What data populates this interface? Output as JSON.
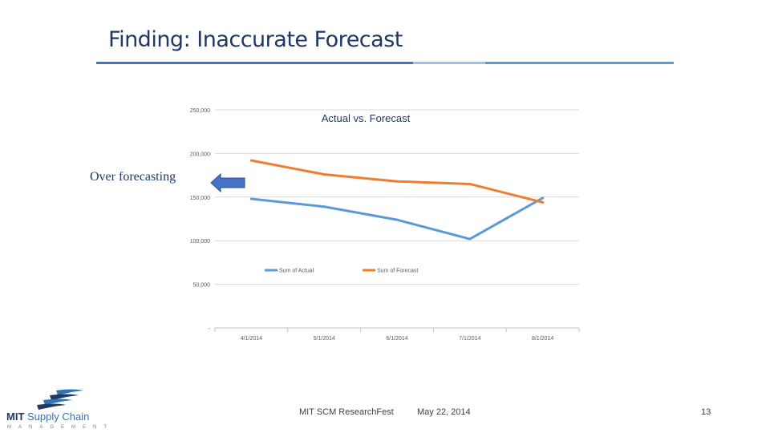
{
  "slide": {
    "title": "Finding: Inaccurate Forecast",
    "annotation": "Over forecasting",
    "page_number": "13"
  },
  "footer": {
    "event": "MIT SCM ResearchFest",
    "date": "May 22, 2014"
  },
  "logo": {
    "name_bold": "MIT",
    "name_rest": " Supply Chain",
    "subtitle": "MANAGEMENT"
  },
  "colors": {
    "title": "#1f3864",
    "actual": "#5b9bd5",
    "forecast": "#ed7d31",
    "arrow": "#4472c4",
    "rule_dark": "#4472c4",
    "rule_light": "#9dc3e6"
  },
  "chart_data": {
    "type": "line",
    "title": "Actual vs. Forecast",
    "categories": [
      "4/1/2014",
      "5/1/2014",
      "6/1/2014",
      "7/1/2014",
      "8/1/2014"
    ],
    "y_ticks": [
      0,
      50000,
      100000,
      150000,
      200000,
      250000
    ],
    "y_tick_labels": [
      "-",
      "50,000",
      "100,000",
      "150,000",
      "200,000",
      "250,000"
    ],
    "ylim": [
      0,
      250000
    ],
    "grid": true,
    "legend_position": "middle",
    "series": [
      {
        "name": "Sum of Actual",
        "values": [
          148000,
          139000,
          124000,
          102000,
          149000
        ]
      },
      {
        "name": "Sum of Forecast",
        "values": [
          192000,
          176000,
          168000,
          165000,
          144000
        ]
      }
    ]
  }
}
